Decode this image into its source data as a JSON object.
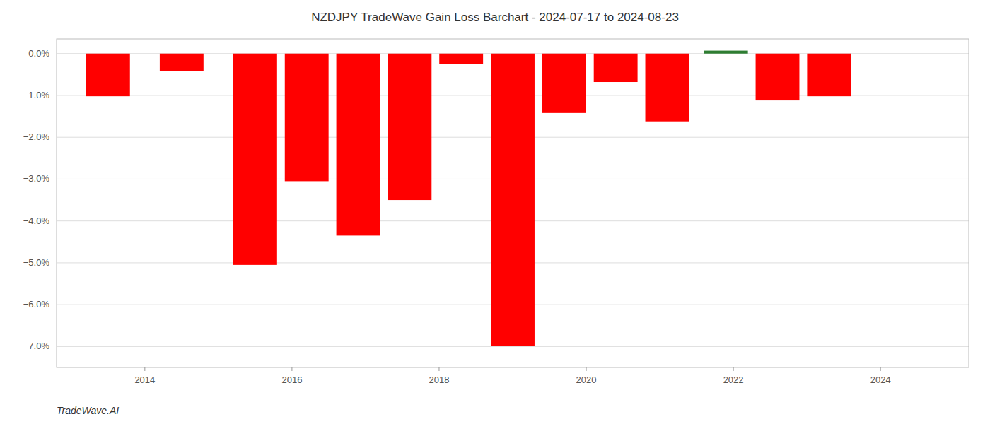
{
  "chart_data": {
    "type": "bar",
    "title": "NZDJPY TradeWave Gain Loss Barchart - 2024-07-17 to 2024-08-23",
    "annotations": [
      "TradeWave.AI"
    ],
    "x": [
      2013.5,
      2014.5,
      2015.5,
      2016.2,
      2016.9,
      2017.6,
      2018.3,
      2019.0,
      2019.7,
      2020.4,
      2021.1,
      2021.9,
      2022.6,
      2023.3
    ],
    "values": [
      -1.02,
      -0.42,
      -5.05,
      -3.05,
      -4.35,
      -3.5,
      -0.25,
      -6.98,
      -1.42,
      -0.68,
      -1.62,
      0.07,
      -1.12,
      -1.02
    ],
    "colors": [
      "#ff0000",
      "#ff0000",
      "#ff0000",
      "#ff0000",
      "#ff0000",
      "#ff0000",
      "#ff0000",
      "#ff0000",
      "#ff0000",
      "#ff0000",
      "#ff0000",
      "#2e7d32",
      "#ff0000",
      "#ff0000"
    ],
    "xlim": [
      2012.8,
      2025.2
    ],
    "ylim": [
      -7.5,
      0.35
    ],
    "xticks": [
      2014,
      2016,
      2018,
      2020,
      2022,
      2024
    ],
    "yticks": [
      {
        "value": 0.0,
        "label": "0.0%"
      },
      {
        "value": -1.0,
        "label": "−1.0%"
      },
      {
        "value": -2.0,
        "label": "−2.0%"
      },
      {
        "value": -3.0,
        "label": "−3.0%"
      },
      {
        "value": -4.0,
        "label": "−4.0%"
      },
      {
        "value": -5.0,
        "label": "−5.0%"
      },
      {
        "value": -6.0,
        "label": "−6.0%"
      },
      {
        "value": -7.0,
        "label": "−7.0%"
      }
    ],
    "grid": true
  }
}
